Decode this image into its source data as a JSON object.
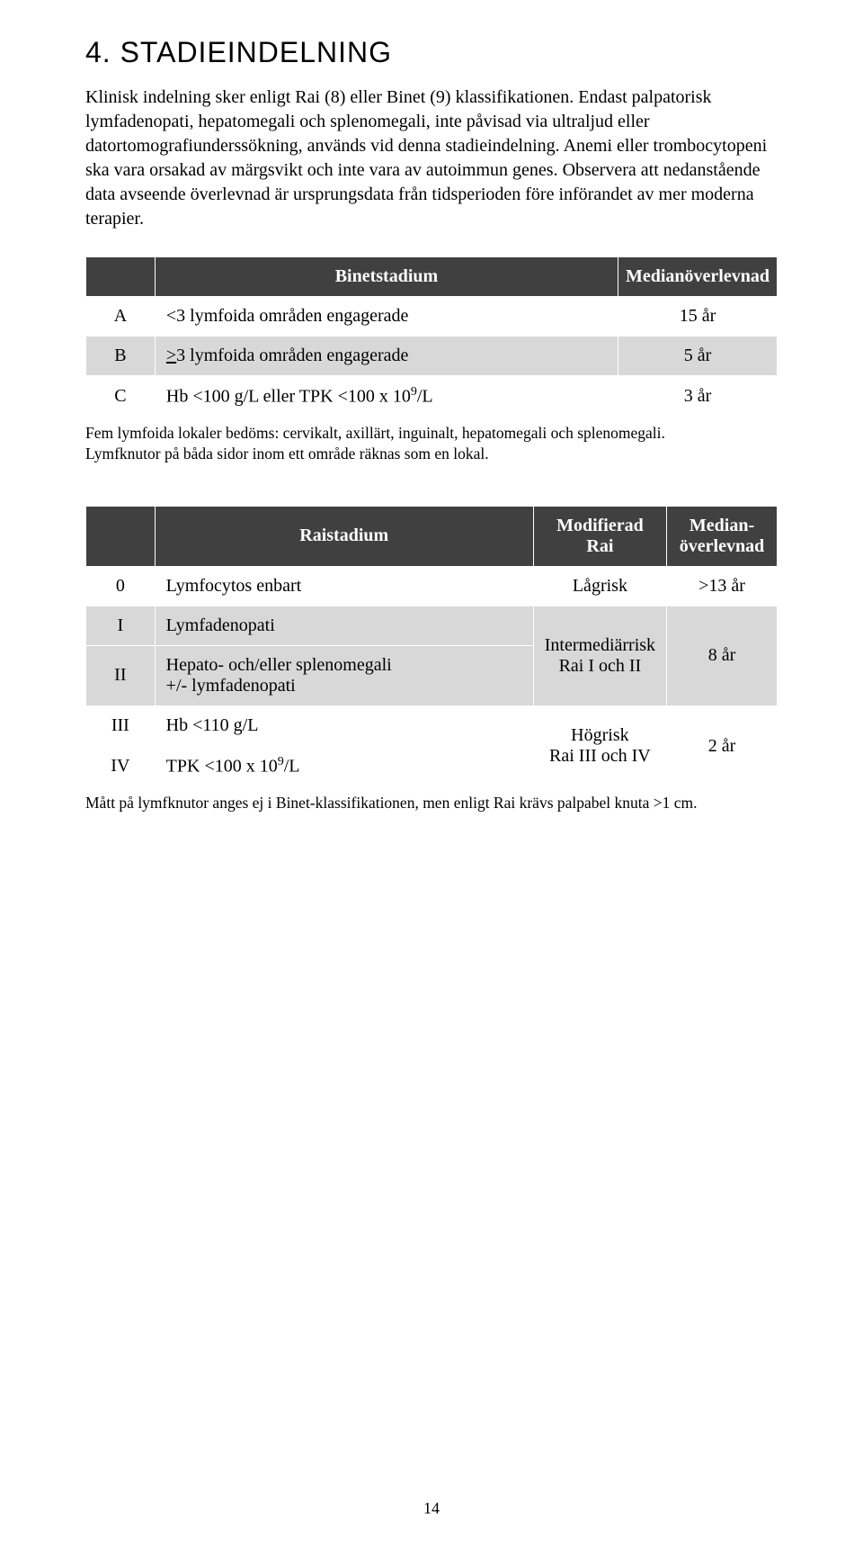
{
  "section": {
    "number": "4.",
    "title": "STADIEINDELNING"
  },
  "intro_paragraph": "Klinisk indelning sker enligt Rai (8) eller Binet (9) klassifikationen. Endast palpatorisk lymfadenopati, hepatomegali och splenomegali, inte påvisad via ultraljud eller datortomografiunderssökning, används vid denna stadieindelning. Anemi eller trombocytopeni ska vara orsakad av märgsvikt och inte vara av autoimmun genes. Observera att nedanstående data avseende överlevnad är ursprungsdata från tidsperioden före införandet av mer moderna terapier.",
  "binet_table": {
    "headers": {
      "stage": "",
      "desc": "Binetstadium",
      "surv": "Medianöverlevnad"
    },
    "rows": [
      {
        "stage": "A",
        "desc": "<3 lymfoida områden engagerade",
        "surv": "15 år",
        "shade": "white"
      },
      {
        "stage": "B",
        "desc": ">3 lymfoida områden engagerade",
        "surv": "5 år",
        "shade": "grey"
      },
      {
        "stage": "C",
        "desc_prefix": "Hb <100 g/L eller TPK <100 x 10",
        "desc_sup": "9",
        "desc_suffix": "/L",
        "surv": "3 år",
        "shade": "white"
      }
    ],
    "caption_line1": "Fem lymfoida lokaler bedöms: cervikalt, axillärt, inguinalt, hepatomegali och splenomegali.",
    "caption_line2": "Lymfknutor på båda sidor inom ett område räknas som en lokal."
  },
  "rai_table": {
    "headers": {
      "stage": "",
      "rai": "Raistadium",
      "mod": "Modifierad Rai",
      "surv_line1": "Median-",
      "surv_line2": "överlevnad"
    },
    "rows": {
      "r0": {
        "stage": "0",
        "desc": "Lymfocytos enbart",
        "mod": "Lågrisk",
        "surv": ">13 år"
      },
      "r1": {
        "stage": "I",
        "desc": "Lymfadenopati"
      },
      "r2": {
        "stage": "II",
        "desc_line1": "Hepato- och/eller splenomegali",
        "desc_line2": "+/- lymfadenopati",
        "mod_line1": "Intermediärrisk",
        "mod_line2": "Rai I och II",
        "surv": "8 år"
      },
      "r3": {
        "stage": "III",
        "desc": "Hb <110 g/L"
      },
      "r4": {
        "stage": "IV",
        "desc_prefix": "TPK <100 x 10",
        "desc_sup": "9",
        "desc_suffix": "/L",
        "mod_line1": "Högrisk",
        "mod_line2": "Rai III och IV",
        "surv": "2 år"
      }
    },
    "caption": "Mått på lymfknutor anges ej i Binet-klassifikationen, men enligt Rai krävs palpabel knuta >1 cm."
  },
  "page_number": "14"
}
